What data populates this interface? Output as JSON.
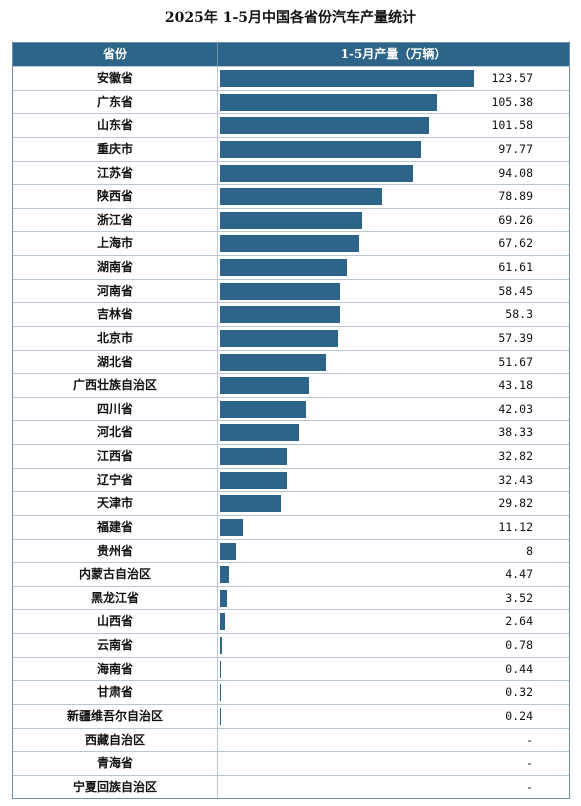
{
  "title": "2025年 1-5月中国各省份汽车产量统计",
  "header": {
    "col_province": "省份",
    "col_value": "1-5月产量（万辆）"
  },
  "colors": {
    "bar": "#2c6588",
    "header_bg": "#2c6588"
  },
  "chart_data": {
    "type": "bar",
    "orientation": "horizontal",
    "title": "2025年 1-5月中国各省份汽车产量统计",
    "xlabel": "1-5月产量（万辆）",
    "ylabel": "省份",
    "xlim": [
      0,
      123.57
    ],
    "categories": [
      "安徽省",
      "广东省",
      "山东省",
      "重庆市",
      "江苏省",
      "陕西省",
      "浙江省",
      "上海市",
      "湖南省",
      "河南省",
      "吉林省",
      "北京市",
      "湖北省",
      "广西壮族自治区",
      "四川省",
      "河北省",
      "江西省",
      "辽宁省",
      "天津市",
      "福建省",
      "贵州省",
      "内蒙古自治区",
      "黑龙江省",
      "山西省",
      "云南省",
      "海南省",
      "甘肃省",
      "新疆维吾尔自治区",
      "西藏自治区",
      "青海省",
      "宁夏回族自治区"
    ],
    "values": [
      123.57,
      105.38,
      101.58,
      97.77,
      94.08,
      78.89,
      69.26,
      67.62,
      61.61,
      58.45,
      58.3,
      57.39,
      51.67,
      43.18,
      42.03,
      38.33,
      32.82,
      32.43,
      29.82,
      11.12,
      8,
      4.47,
      3.52,
      2.64,
      0.78,
      0.44,
      0.32,
      0.24,
      null,
      null,
      null
    ],
    "value_labels": [
      "123.57",
      "105.38",
      "101.58",
      "97.77",
      "94.08",
      "78.89",
      "69.26",
      "67.62",
      "61.61",
      "58.45",
      "58.3",
      "57.39",
      "51.67",
      "43.18",
      "42.03",
      "38.33",
      "32.82",
      "32.43",
      "29.82",
      "11.12",
      "8",
      "4.47",
      "3.52",
      "2.64",
      "0.78",
      "0.44",
      "0.32",
      "0.24",
      "-",
      "-",
      "-"
    ]
  }
}
